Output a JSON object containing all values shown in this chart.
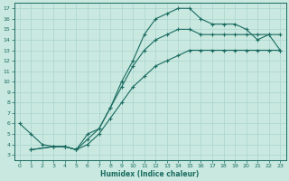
{
  "xlabel": "Humidex (Indice chaleur)",
  "bg_color": "#c8e8e0",
  "grid_color": "#b0d8d0",
  "line_color": "#1a6b60",
  "xlim": [
    -0.5,
    23.5
  ],
  "ylim": [
    2.5,
    17.5
  ],
  "xticks": [
    0,
    1,
    2,
    3,
    4,
    5,
    6,
    7,
    8,
    9,
    10,
    11,
    12,
    13,
    14,
    15,
    16,
    17,
    18,
    19,
    20,
    21,
    22,
    23
  ],
  "yticks": [
    3,
    4,
    5,
    6,
    7,
    8,
    9,
    10,
    11,
    12,
    13,
    14,
    15,
    16,
    17
  ],
  "line1_x": [
    0,
    1,
    2,
    3,
    4,
    5,
    6,
    7,
    8,
    9,
    10,
    11,
    12,
    13,
    14,
    15,
    16,
    17,
    18,
    19,
    20,
    21,
    22,
    23
  ],
  "line1_y": [
    6,
    5,
    4,
    3.8,
    3.8,
    3.5,
    5.0,
    5.5,
    7.5,
    10,
    12,
    14.5,
    16,
    16.5,
    17,
    17,
    16,
    15.5,
    15.5,
    15.5,
    15,
    14,
    14.5,
    13
  ],
  "line2_x": [
    1,
    3,
    4,
    5,
    6,
    7,
    8,
    9,
    10,
    11,
    12,
    13,
    14,
    15,
    16,
    17,
    18,
    19,
    20,
    21,
    22,
    23
  ],
  "line2_y": [
    3.5,
    3.8,
    3.8,
    3.5,
    4.0,
    5.0,
    6.5,
    8.0,
    9.5,
    10.5,
    11.5,
    12.0,
    12.5,
    13.0,
    13.0,
    13.0,
    13.0,
    13.0,
    13.0,
    13.0,
    13.0,
    13.0
  ],
  "line3_x": [
    1,
    3,
    4,
    5,
    6,
    7,
    8,
    9,
    10,
    11,
    12,
    13,
    14,
    15,
    16,
    17,
    18,
    19,
    20,
    21,
    22,
    23
  ],
  "line3_y": [
    3.5,
    3.8,
    3.8,
    3.5,
    4.5,
    5.5,
    7.5,
    9.5,
    11.5,
    13.0,
    14.0,
    14.5,
    15.0,
    15.0,
    14.5,
    14.5,
    14.5,
    14.5,
    14.5,
    14.5,
    14.5,
    14.5
  ]
}
